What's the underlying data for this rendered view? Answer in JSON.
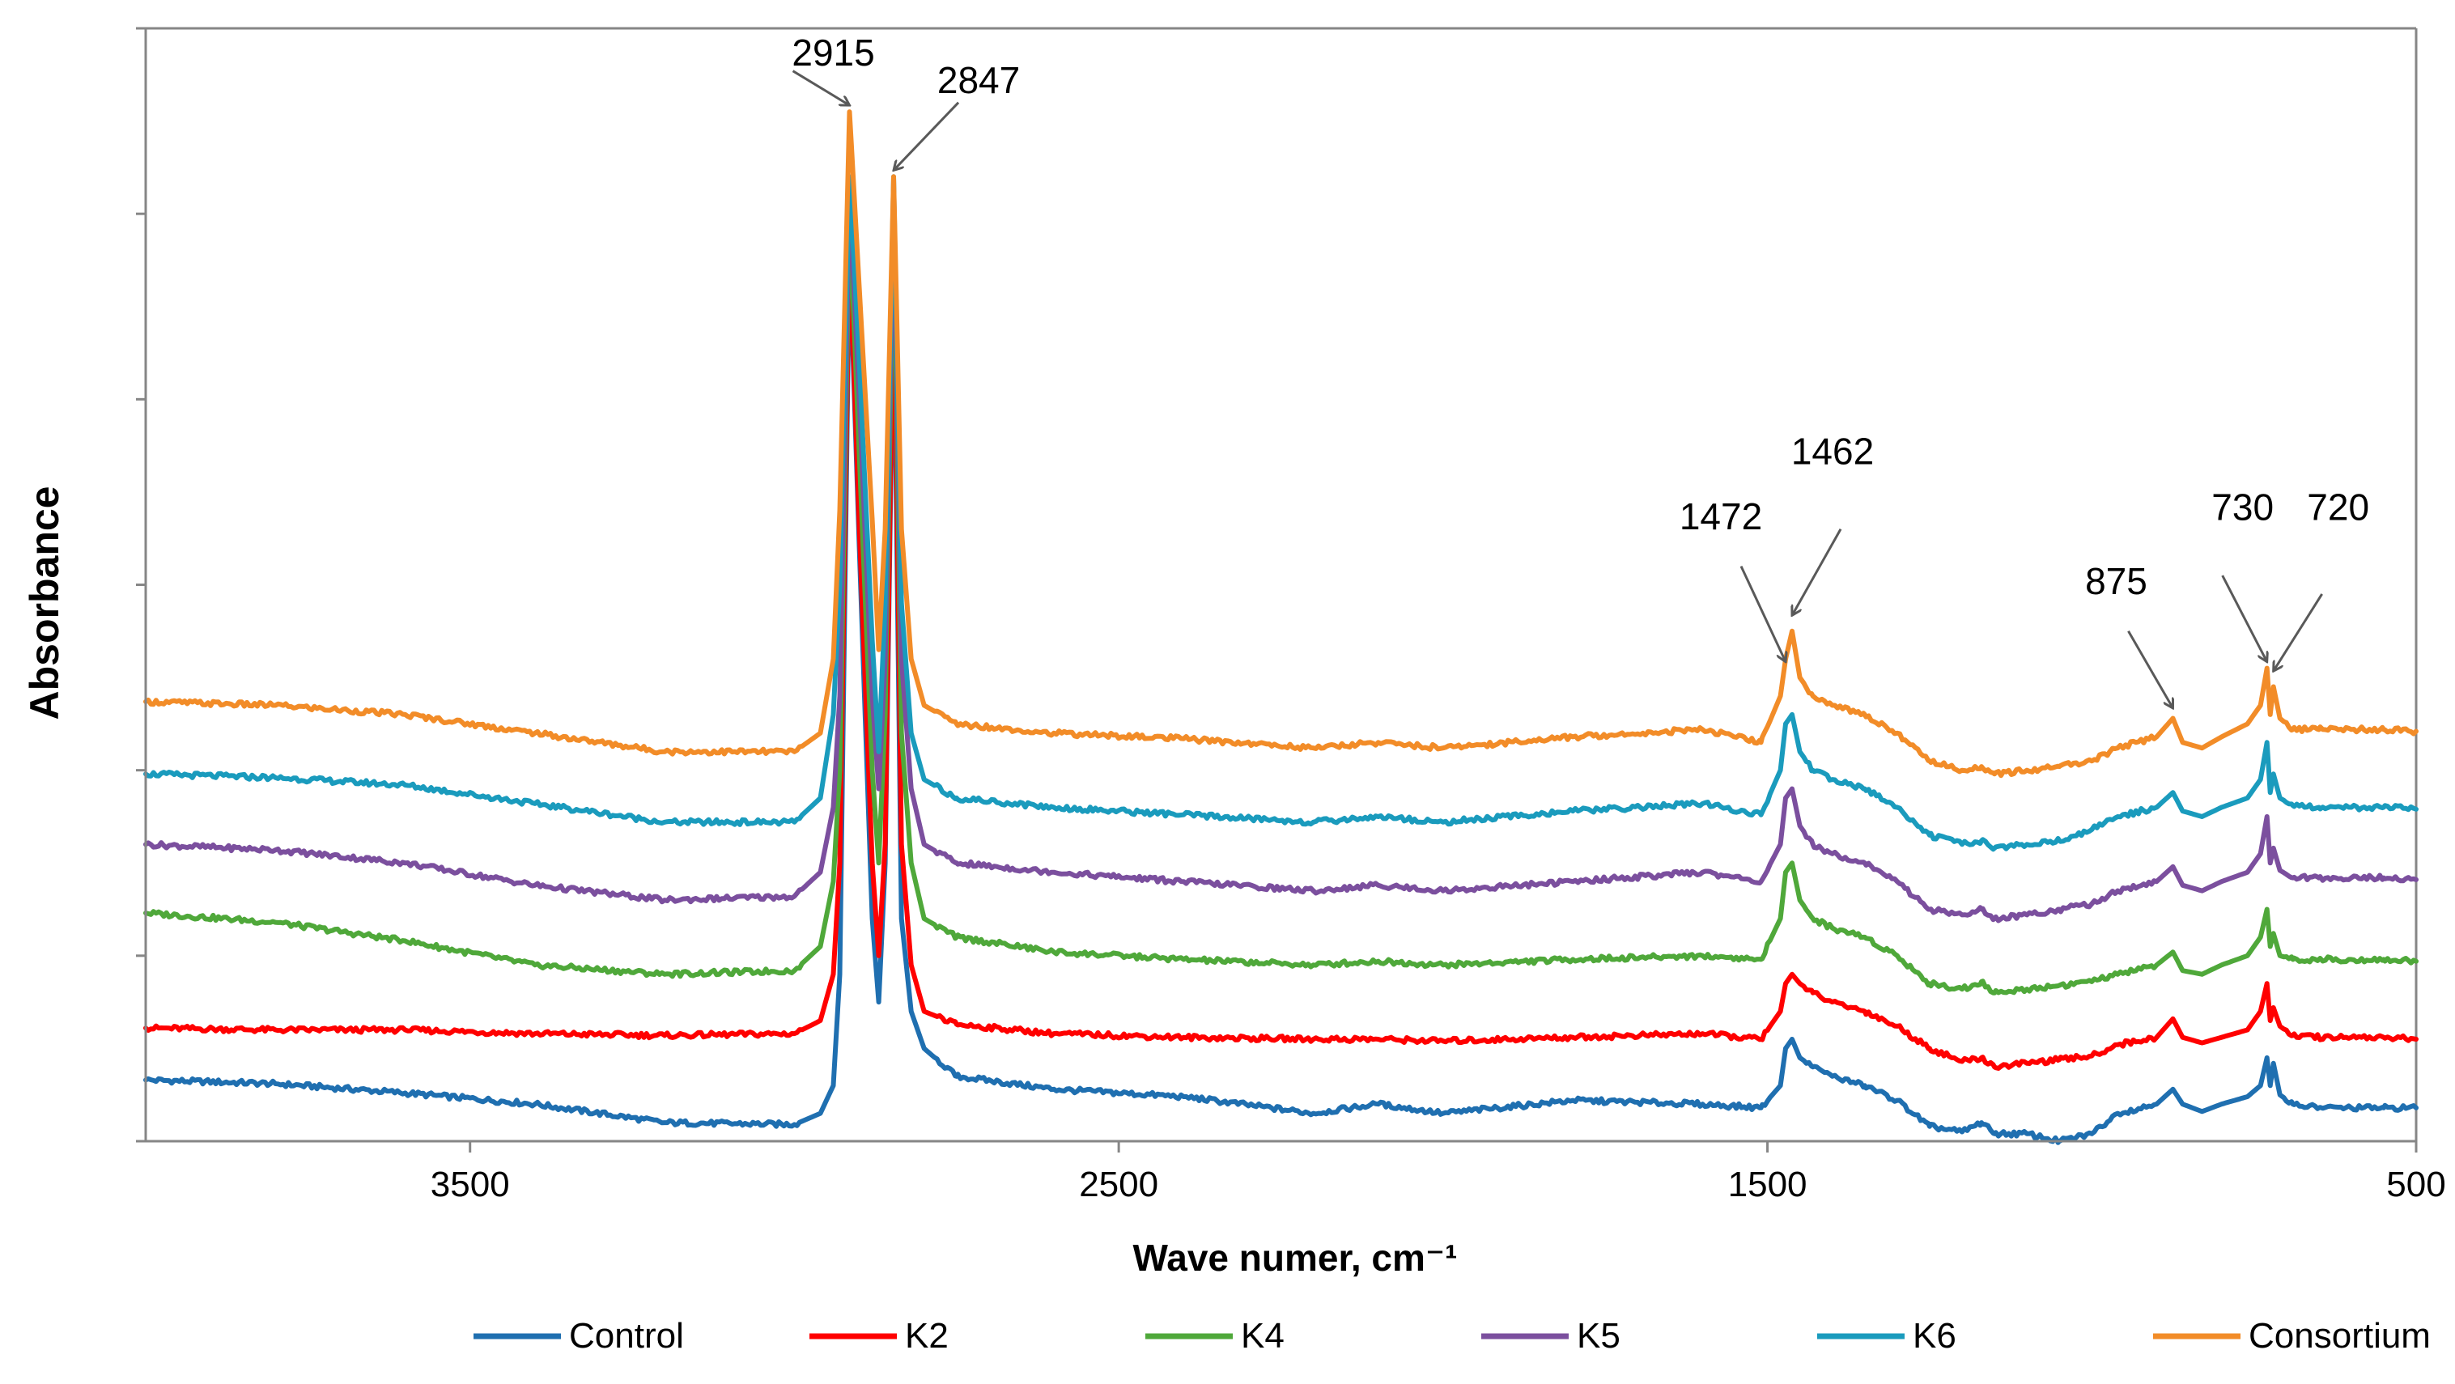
{
  "chart_data": {
    "type": "line",
    "title": "",
    "xlabel": "Wave numer,  cm⁻¹",
    "ylabel": "Absorbance",
    "xlim": [
      4000,
      500
    ],
    "x_reversed": true,
    "ylim": [
      0,
      6
    ],
    "y_ticks_unlabeled": [
      0,
      1,
      2,
      3,
      4,
      5,
      6
    ],
    "x_ticks": [
      3500,
      2500,
      1500,
      500
    ],
    "x_tick_labels": [
      "3500",
      "2500",
      "1500",
      "500"
    ],
    "series": [
      {
        "name": "Control",
        "color": "#1F6FB0",
        "x": [
          4000,
          3800,
          3600,
          3400,
          3200,
          3000,
          2960,
          2940,
          2930,
          2915,
          2900,
          2880,
          2870,
          2860,
          2847,
          2835,
          2820,
          2800,
          2750,
          2600,
          2400,
          2200,
          2100,
          2000,
          1800,
          1600,
          1510,
          1480,
          1472,
          1462,
          1450,
          1430,
          1400,
          1350,
          1300,
          1250,
          1200,
          1170,
          1150,
          1100,
          1050,
          1000,
          960,
          900,
          875,
          860,
          830,
          800,
          760,
          740,
          730,
          725,
          720,
          710,
          690,
          650,
          600,
          550,
          500
        ],
        "y": [
          0.33,
          0.31,
          0.26,
          0.2,
          0.1,
          0.09,
          0.15,
          0.3,
          0.9,
          4.8,
          3.2,
          1.2,
          0.75,
          1.5,
          4.6,
          1.2,
          0.7,
          0.5,
          0.35,
          0.28,
          0.24,
          0.15,
          0.2,
          0.15,
          0.22,
          0.2,
          0.18,
          0.3,
          0.5,
          0.55,
          0.45,
          0.4,
          0.35,
          0.3,
          0.22,
          0.08,
          0.05,
          0.1,
          0.04,
          0.04,
          0.0,
          0.04,
          0.15,
          0.2,
          0.28,
          0.2,
          0.16,
          0.2,
          0.24,
          0.3,
          0.45,
          0.3,
          0.42,
          0.25,
          0.2,
          0.18,
          0.18,
          0.18,
          0.18
        ]
      },
      {
        "name": "K2",
        "color": "#FF0000",
        "x": [
          4000,
          3800,
          3600,
          3400,
          3200,
          3000,
          2960,
          2940,
          2930,
          2915,
          2900,
          2880,
          2870,
          2860,
          2847,
          2835,
          2820,
          2800,
          2750,
          2600,
          2400,
          2200,
          2100,
          2000,
          1800,
          1600,
          1510,
          1480,
          1472,
          1462,
          1450,
          1430,
          1400,
          1350,
          1300,
          1250,
          1200,
          1170,
          1150,
          1100,
          1050,
          1000,
          960,
          900,
          875,
          860,
          830,
          800,
          760,
          740,
          730,
          725,
          720,
          710,
          690,
          650,
          600,
          550,
          500
        ],
        "y": [
          0.61,
          0.6,
          0.6,
          0.58,
          0.57,
          0.58,
          0.65,
          0.9,
          1.5,
          4.85,
          3.3,
          1.5,
          1.0,
          1.6,
          4.75,
          1.6,
          0.95,
          0.7,
          0.63,
          0.58,
          0.56,
          0.55,
          0.55,
          0.54,
          0.56,
          0.58,
          0.55,
          0.7,
          0.85,
          0.9,
          0.85,
          0.8,
          0.75,
          0.7,
          0.62,
          0.5,
          0.43,
          0.45,
          0.4,
          0.42,
          0.44,
          0.46,
          0.52,
          0.56,
          0.66,
          0.56,
          0.53,
          0.56,
          0.6,
          0.7,
          0.85,
          0.65,
          0.72,
          0.62,
          0.57,
          0.56,
          0.56,
          0.56,
          0.55
        ]
      },
      {
        "name": "K4",
        "color": "#4FA83A",
        "x": [
          4000,
          3800,
          3600,
          3400,
          3200,
          3000,
          2960,
          2940,
          2930,
          2915,
          2900,
          2880,
          2870,
          2860,
          2847,
          2835,
          2820,
          2800,
          2750,
          2600,
          2400,
          2200,
          2100,
          2000,
          1800,
          1600,
          1510,
          1480,
          1472,
          1462,
          1450,
          1430,
          1400,
          1350,
          1300,
          1250,
          1200,
          1170,
          1150,
          1100,
          1050,
          1000,
          960,
          900,
          875,
          860,
          830,
          800,
          760,
          740,
          730,
          725,
          720,
          710,
          690,
          650,
          600,
          550,
          500
        ],
        "y": [
          1.23,
          1.18,
          1.08,
          0.95,
          0.9,
          0.92,
          1.05,
          1.4,
          2.0,
          5.0,
          3.7,
          2.0,
          1.5,
          2.3,
          5.0,
          2.2,
          1.5,
          1.2,
          1.1,
          1.02,
          0.98,
          0.95,
          0.97,
          0.95,
          0.98,
          1.0,
          0.98,
          1.2,
          1.45,
          1.5,
          1.3,
          1.2,
          1.15,
          1.1,
          1.0,
          0.85,
          0.82,
          0.86,
          0.8,
          0.82,
          0.84,
          0.86,
          0.9,
          0.95,
          1.02,
          0.92,
          0.9,
          0.95,
          1.0,
          1.1,
          1.25,
          1.05,
          1.12,
          1.0,
          0.98,
          0.98,
          0.98,
          0.98,
          0.97
        ]
      },
      {
        "name": "K5",
        "color": "#7B4F9E",
        "x": [
          4000,
          3800,
          3600,
          3400,
          3200,
          3000,
          2960,
          2940,
          2930,
          2915,
          2900,
          2880,
          2870,
          2860,
          2847,
          2835,
          2820,
          2800,
          2750,
          2600,
          2400,
          2200,
          2100,
          2000,
          1800,
          1600,
          1510,
          1480,
          1472,
          1462,
          1450,
          1430,
          1400,
          1350,
          1300,
          1250,
          1200,
          1170,
          1150,
          1100,
          1050,
          1000,
          960,
          900,
          875,
          860,
          830,
          800,
          760,
          740,
          730,
          725,
          720,
          710,
          690,
          650,
          600,
          550,
          500
        ],
        "y": [
          1.6,
          1.57,
          1.5,
          1.38,
          1.3,
          1.32,
          1.45,
          1.8,
          2.4,
          5.1,
          4.0,
          2.4,
          1.9,
          2.6,
          5.1,
          2.6,
          1.9,
          1.6,
          1.5,
          1.45,
          1.4,
          1.35,
          1.38,
          1.35,
          1.4,
          1.45,
          1.4,
          1.6,
          1.85,
          1.9,
          1.7,
          1.6,
          1.55,
          1.5,
          1.4,
          1.25,
          1.22,
          1.25,
          1.2,
          1.22,
          1.25,
          1.28,
          1.35,
          1.4,
          1.48,
          1.38,
          1.35,
          1.4,
          1.45,
          1.55,
          1.75,
          1.5,
          1.58,
          1.46,
          1.42,
          1.42,
          1.42,
          1.42,
          1.41
        ]
      },
      {
        "name": "K6",
        "color": "#1A9BBD",
        "x": [
          4000,
          3800,
          3600,
          3400,
          3200,
          3000,
          2960,
          2940,
          2930,
          2915,
          2900,
          2880,
          2870,
          2860,
          2847,
          2835,
          2820,
          2800,
          2750,
          2600,
          2400,
          2200,
          2100,
          2000,
          1800,
          1600,
          1510,
          1480,
          1472,
          1462,
          1450,
          1430,
          1400,
          1350,
          1300,
          1250,
          1200,
          1170,
          1150,
          1100,
          1050,
          1000,
          960,
          900,
          875,
          860,
          830,
          800,
          760,
          740,
          730,
          725,
          720,
          710,
          690,
          650,
          600,
          550,
          500
        ],
        "y": [
          1.98,
          1.96,
          1.92,
          1.82,
          1.72,
          1.72,
          1.85,
          2.3,
          3.0,
          5.2,
          4.2,
          2.7,
          2.1,
          2.9,
          5.2,
          2.9,
          2.2,
          1.95,
          1.85,
          1.8,
          1.76,
          1.72,
          1.75,
          1.72,
          1.78,
          1.82,
          1.76,
          2.0,
          2.25,
          2.3,
          2.1,
          2.0,
          1.95,
          1.9,
          1.8,
          1.65,
          1.6,
          1.62,
          1.58,
          1.6,
          1.62,
          1.68,
          1.75,
          1.8,
          1.88,
          1.78,
          1.75,
          1.8,
          1.85,
          1.95,
          2.15,
          1.88,
          1.98,
          1.85,
          1.81,
          1.8,
          1.8,
          1.8,
          1.79
        ]
      },
      {
        "name": "Consortium",
        "color": "#F28C28",
        "x": [
          4000,
          3800,
          3600,
          3400,
          3200,
          3000,
          2960,
          2940,
          2930,
          2915,
          2900,
          2880,
          2870,
          2860,
          2847,
          2835,
          2820,
          2800,
          2750,
          2600,
          2400,
          2200,
          2100,
          2000,
          1800,
          1600,
          1510,
          1480,
          1472,
          1462,
          1450,
          1430,
          1400,
          1350,
          1300,
          1250,
          1200,
          1170,
          1150,
          1100,
          1050,
          1000,
          960,
          900,
          875,
          860,
          830,
          800,
          760,
          740,
          730,
          725,
          720,
          710,
          690,
          650,
          600,
          550,
          500
        ],
        "y": [
          2.37,
          2.35,
          2.3,
          2.2,
          2.1,
          2.1,
          2.2,
          2.6,
          3.4,
          5.55,
          4.6,
          3.35,
          2.65,
          3.3,
          5.2,
          3.3,
          2.6,
          2.35,
          2.25,
          2.2,
          2.17,
          2.12,
          2.15,
          2.12,
          2.18,
          2.22,
          2.15,
          2.4,
          2.6,
          2.75,
          2.5,
          2.4,
          2.35,
          2.3,
          2.2,
          2.05,
          2.0,
          2.02,
          1.98,
          2.0,
          2.02,
          2.05,
          2.12,
          2.18,
          2.28,
          2.15,
          2.12,
          2.18,
          2.25,
          2.35,
          2.55,
          2.3,
          2.45,
          2.28,
          2.22,
          2.22,
          2.22,
          2.22,
          2.21
        ]
      }
    ],
    "annotations": [
      {
        "label": "2915",
        "x": 2915,
        "y": 5.55,
        "dx": -70,
        "dy": 0.22,
        "ldx": -20,
        "ldy": 0.25
      },
      {
        "label": "2847",
        "x": 2847,
        "y": 5.2,
        "dx": 80,
        "dy": 0.4,
        "ldx": 105,
        "ldy": 0.45
      },
      {
        "label": "1472",
        "x": 1472,
        "y": 2.55,
        "dx": -55,
        "dy": 0.55,
        "ldx": -80,
        "ldy": 0.75
      },
      {
        "label": "1462",
        "x": 1462,
        "y": 2.8,
        "dx": 60,
        "dy": 0.5,
        "ldx": 50,
        "ldy": 0.85
      },
      {
        "label": "875",
        "x": 875,
        "y": 2.3,
        "dx": -55,
        "dy": 0.45,
        "ldx": -70,
        "ldy": 0.65
      },
      {
        "label": "730",
        "x": 730,
        "y": 2.55,
        "dx": -55,
        "dy": 0.5,
        "ldx": -30,
        "ldy": 0.8
      },
      {
        "label": "720",
        "x": 720,
        "y": 2.5,
        "dx": 60,
        "dy": 0.45,
        "ldx": 80,
        "ldy": 0.85
      }
    ],
    "legend_position": "bottom",
    "grid": false
  }
}
